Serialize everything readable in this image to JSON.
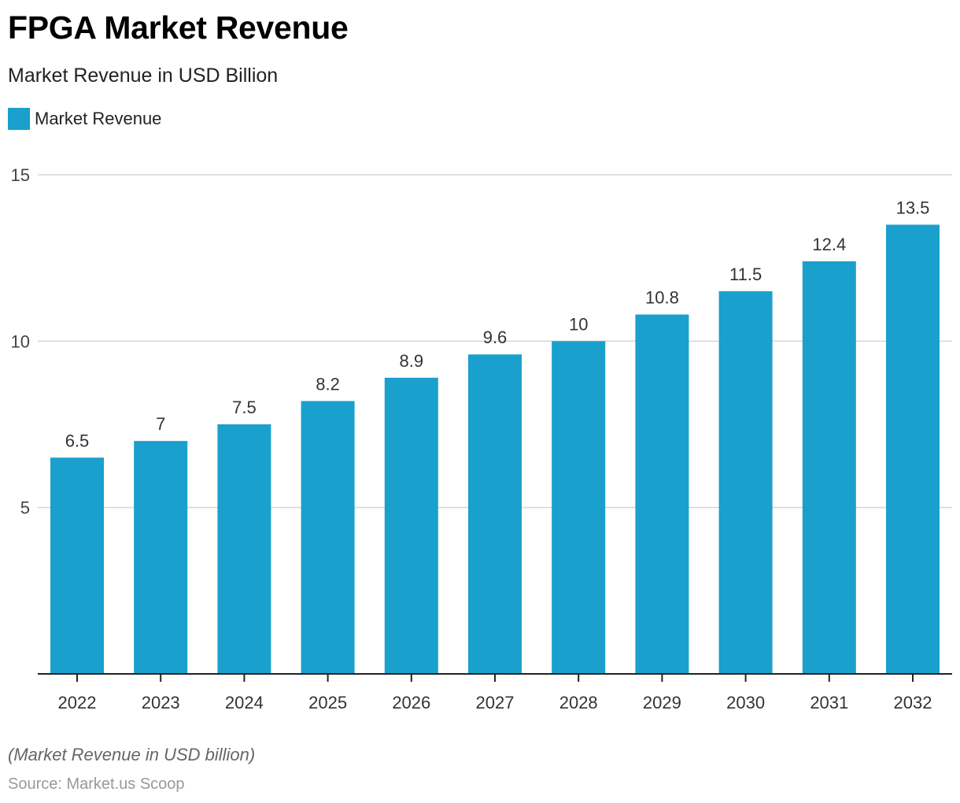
{
  "chart_data": {
    "type": "bar",
    "title": "FPGA Market Revenue",
    "subtitle": "Market Revenue in USD Billion",
    "xlabel": "",
    "ylabel": "",
    "categories": [
      "2022",
      "2023",
      "2024",
      "2025",
      "2026",
      "2027",
      "2028",
      "2029",
      "2030",
      "2031",
      "2032"
    ],
    "series": [
      {
        "name": "Market Revenue",
        "color": "#1aa0cc",
        "values": [
          6.5,
          7,
          7.5,
          8.2,
          8.9,
          9.6,
          10,
          10.8,
          11.5,
          12.4,
          13.5
        ],
        "labels": [
          "6.5",
          "7",
          "7.5",
          "8.2",
          "8.9",
          "9.6",
          "10",
          "10.8",
          "11.5",
          "12.4",
          "13.5"
        ]
      }
    ],
    "ylim": [
      0,
      15
    ],
    "yticks": [
      5,
      10,
      15
    ],
    "ytick_labels": [
      "5",
      "10",
      "15"
    ],
    "grid": true,
    "legend_position": "top-left",
    "note": "(Market Revenue in USD billion)",
    "source": "Source: Market.us Scoop"
  }
}
